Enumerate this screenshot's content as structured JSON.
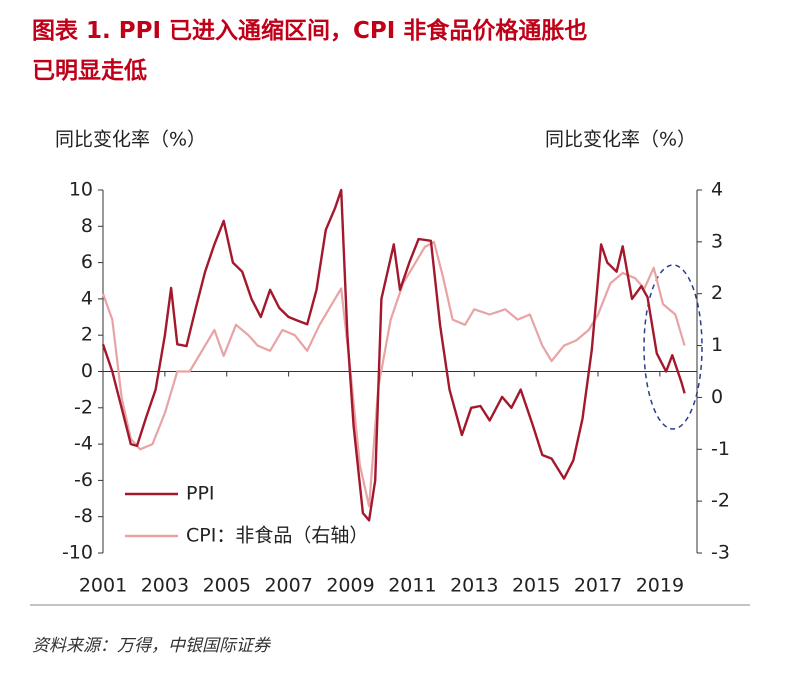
{
  "chart_data": {
    "type": "line",
    "title": "图表 1. PPI 已进入通缩区间，CPI 非食品价格通胀也已明显走低",
    "ylabel": "同比变化率（%）",
    "y2label": "同比变化率（%）",
    "source": "资料来源：万得，中银国际证券",
    "xlim": [
      2001,
      2020.2
    ],
    "xticks": [
      2001,
      2003,
      2005,
      2007,
      2009,
      2011,
      2013,
      2015,
      2017,
      2019
    ],
    "ylim": [
      -10,
      10
    ],
    "yticks": [
      -10,
      -8,
      -6,
      -4,
      -2,
      0,
      2,
      4,
      6,
      8,
      10
    ],
    "y2lim": [
      -3,
      4
    ],
    "y2ticks": [
      -3,
      -2,
      -1,
      0,
      1,
      2,
      3,
      4
    ],
    "grid": false,
    "legend": "lower left",
    "series": [
      {
        "name": "PPI",
        "color": "#a3182c",
        "axis": "y",
        "x": [
          2001.0,
          2001.3,
          2001.6,
          2001.9,
          2002.1,
          2002.4,
          2002.7,
          2003.0,
          2003.2,
          2003.4,
          2003.7,
          2004.0,
          2004.3,
          2004.6,
          2004.9,
          2005.2,
          2005.5,
          2005.8,
          2006.1,
          2006.4,
          2006.7,
          2007.0,
          2007.3,
          2007.6,
          2007.9,
          2008.2,
          2008.5,
          2008.7,
          2008.9,
          2009.1,
          2009.4,
          2009.6,
          2009.8,
          2010.0,
          2010.4,
          2010.6,
          2010.9,
          2011.2,
          2011.6,
          2011.9,
          2012.2,
          2012.6,
          2012.9,
          2013.2,
          2013.5,
          2013.9,
          2014.2,
          2014.5,
          2014.9,
          2015.2,
          2015.5,
          2015.9,
          2016.2,
          2016.5,
          2016.8,
          2017.1,
          2017.3,
          2017.6,
          2017.8,
          2018.1,
          2018.4,
          2018.6,
          2018.9,
          2019.2,
          2019.4,
          2019.7,
          2019.8
        ],
        "values": [
          1.5,
          0,
          -2,
          -4,
          -4.1,
          -2.5,
          -1,
          2,
          4.6,
          1.5,
          1.4,
          3.5,
          5.5,
          7,
          8.3,
          6,
          5.5,
          4,
          3,
          4.5,
          3.5,
          3,
          2.8,
          2.6,
          4.5,
          7.8,
          9,
          10,
          2,
          -3,
          -7.8,
          -8.2,
          -6,
          4,
          7,
          4.5,
          6,
          7.3,
          7.2,
          2.5,
          -1,
          -3.5,
          -2,
          -1.9,
          -2.7,
          -1.4,
          -2,
          -1,
          -3,
          -4.6,
          -4.8,
          -5.9,
          -4.9,
          -2.6,
          1.2,
          7,
          6,
          5.5,
          6.9,
          4,
          4.7,
          4.1,
          1,
          0,
          0.9,
          -0.6,
          -1.2
        ]
      },
      {
        "name": "CPI：非食品（右轴）",
        "color": "#e8a3a5",
        "axis": "y2",
        "x": [
          2001.0,
          2001.3,
          2001.6,
          2001.9,
          2002.2,
          2002.6,
          2003.0,
          2003.4,
          2003.8,
          2004.2,
          2004.6,
          2004.9,
          2005.3,
          2005.7,
          2006.0,
          2006.4,
          2006.8,
          2007.2,
          2007.6,
          2008.0,
          2008.4,
          2008.7,
          2009.0,
          2009.3,
          2009.6,
          2009.9,
          2010.3,
          2010.7,
          2011.0,
          2011.4,
          2011.7,
          2012.0,
          2012.3,
          2012.7,
          2013.0,
          2013.5,
          2014.0,
          2014.4,
          2014.8,
          2015.2,
          2015.5,
          2015.9,
          2016.3,
          2016.7,
          2017.0,
          2017.4,
          2017.8,
          2018.2,
          2018.5,
          2018.8,
          2019.1,
          2019.5,
          2019.8
        ],
        "values": [
          2,
          1.5,
          0,
          -0.8,
          -1,
          -0.9,
          -0.3,
          0.5,
          0.5,
          0.9,
          1.3,
          0.8,
          1.4,
          1.2,
          1.0,
          0.9,
          1.3,
          1.2,
          0.9,
          1.4,
          1.8,
          2.1,
          0.5,
          -1.3,
          -2.1,
          0.2,
          1.5,
          2.2,
          2.5,
          2.9,
          3.0,
          2.3,
          1.5,
          1.4,
          1.7,
          1.6,
          1.7,
          1.5,
          1.6,
          1.0,
          0.7,
          1.0,
          1.1,
          1.3,
          1.6,
          2.2,
          2.4,
          2.3,
          2.1,
          2.5,
          1.8,
          1.6,
          1.0
        ]
      }
    ]
  }
}
